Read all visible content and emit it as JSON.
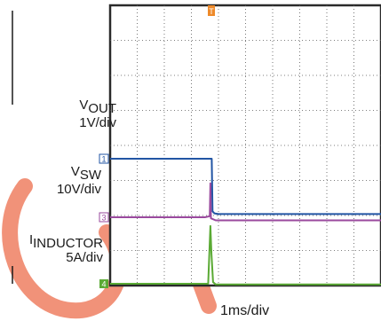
{
  "chart_data": {
    "type": "line",
    "title": "",
    "xlabel": "1ms/div",
    "grid": true,
    "x_divisions": 10,
    "y_divisions": 8,
    "trigger_marker": "T",
    "series": [
      {
        "name": "VOUT",
        "label_main": "V",
        "label_sub": "OUT",
        "scale": "1V/div",
        "channel": "1",
        "color": "#2255a4",
        "points": [
          [
            0,
            3.62
          ],
          [
            3.75,
            3.62
          ],
          [
            3.78,
            2.12
          ],
          [
            3.85,
            2.06
          ],
          [
            4.0,
            2.04
          ],
          [
            10,
            2.04
          ]
        ]
      },
      {
        "name": "VSW",
        "label_main": "V",
        "label_sub": "SW",
        "scale": "10V/div",
        "channel": "3",
        "color": "#9a4a9e",
        "points": [
          [
            0,
            1.95
          ],
          [
            3.5,
            1.95
          ],
          [
            3.68,
            1.98
          ],
          [
            3.7,
            2.92
          ],
          [
            3.72,
            1.92
          ],
          [
            3.9,
            1.86
          ],
          [
            10,
            1.86
          ]
        ]
      },
      {
        "name": "IINDUCTOR",
        "label_main": "I",
        "label_sub": "INDUCTOR",
        "scale": "5A/div",
        "channel": "4",
        "color": "#5aaa34",
        "points": [
          [
            0,
            0.05
          ],
          [
            3.62,
            0.05
          ],
          [
            3.7,
            1.7
          ],
          [
            3.74,
            0.9
          ],
          [
            3.8,
            0.1
          ],
          [
            3.9,
            0.03
          ],
          [
            10,
            0.03
          ]
        ]
      }
    ]
  }
}
